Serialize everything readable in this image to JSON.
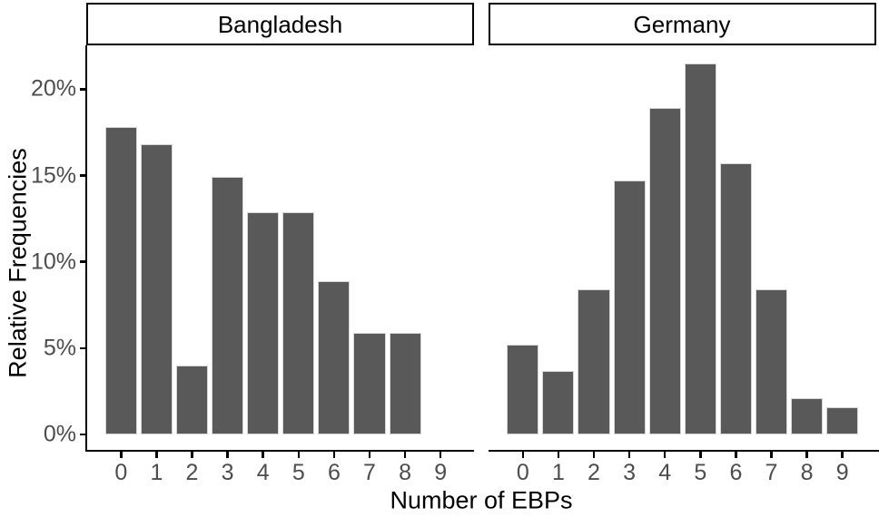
{
  "chart_data": {
    "type": "bar",
    "faceted": true,
    "facet_labels": [
      "Bangladesh",
      "Germany"
    ],
    "categories": [
      "0",
      "1",
      "2",
      "3",
      "4",
      "5",
      "6",
      "7",
      "8",
      "9"
    ],
    "series": [
      {
        "name": "Bangladesh",
        "values": [
          17.8,
          16.8,
          4.0,
          14.9,
          12.9,
          12.9,
          8.9,
          5.9,
          5.9,
          0
        ]
      },
      {
        "name": "Germany",
        "values": [
          5.2,
          3.7,
          8.4,
          14.7,
          18.9,
          21.5,
          15.7,
          8.4,
          2.1,
          1.6
        ]
      }
    ],
    "title": "",
    "xlabel": "Number of EBPs",
    "ylabel": "Relative Frequencies",
    "unit": "%",
    "y_ticks": [
      {
        "label": "0%",
        "value": 0
      },
      {
        "label": "5%",
        "value": 5
      },
      {
        "label": "10%",
        "value": 10
      },
      {
        "label": "15%",
        "value": 15
      },
      {
        "label": "20%",
        "value": 20
      }
    ],
    "ylim": [
      0,
      22.5
    ],
    "grid": false,
    "legend_position": "none",
    "colors": {
      "bar_fill": "#595959",
      "bar_edge": "#d6d6d6",
      "axis_line": "#000000",
      "tick_label": "#4d4d4d",
      "strip_fill": "#ffffff",
      "strip_border": "#000000",
      "title_text": "#000000",
      "background": "#ffffff"
    }
  }
}
